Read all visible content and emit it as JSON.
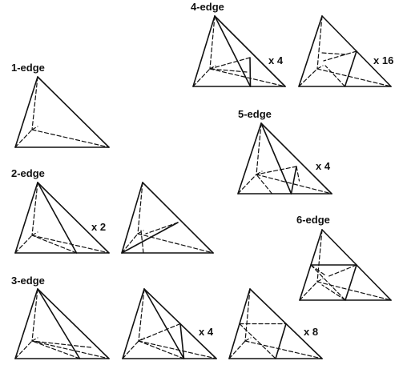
{
  "colors": {
    "ink": "#111111",
    "background": "#ffffff"
  },
  "labels": {
    "edge1": "1-edge",
    "edge2": "2-edge",
    "edge3": "3-edge",
    "edge4": "4-edge",
    "edge5": "5-edge",
    "edge6": "6-edge"
  },
  "multipliers": {
    "two_a": "x 2",
    "three_b": "x 4",
    "three_c": "x 8",
    "four_a": "x 4",
    "four_b": "x 16",
    "five_a": "x 4"
  }
}
